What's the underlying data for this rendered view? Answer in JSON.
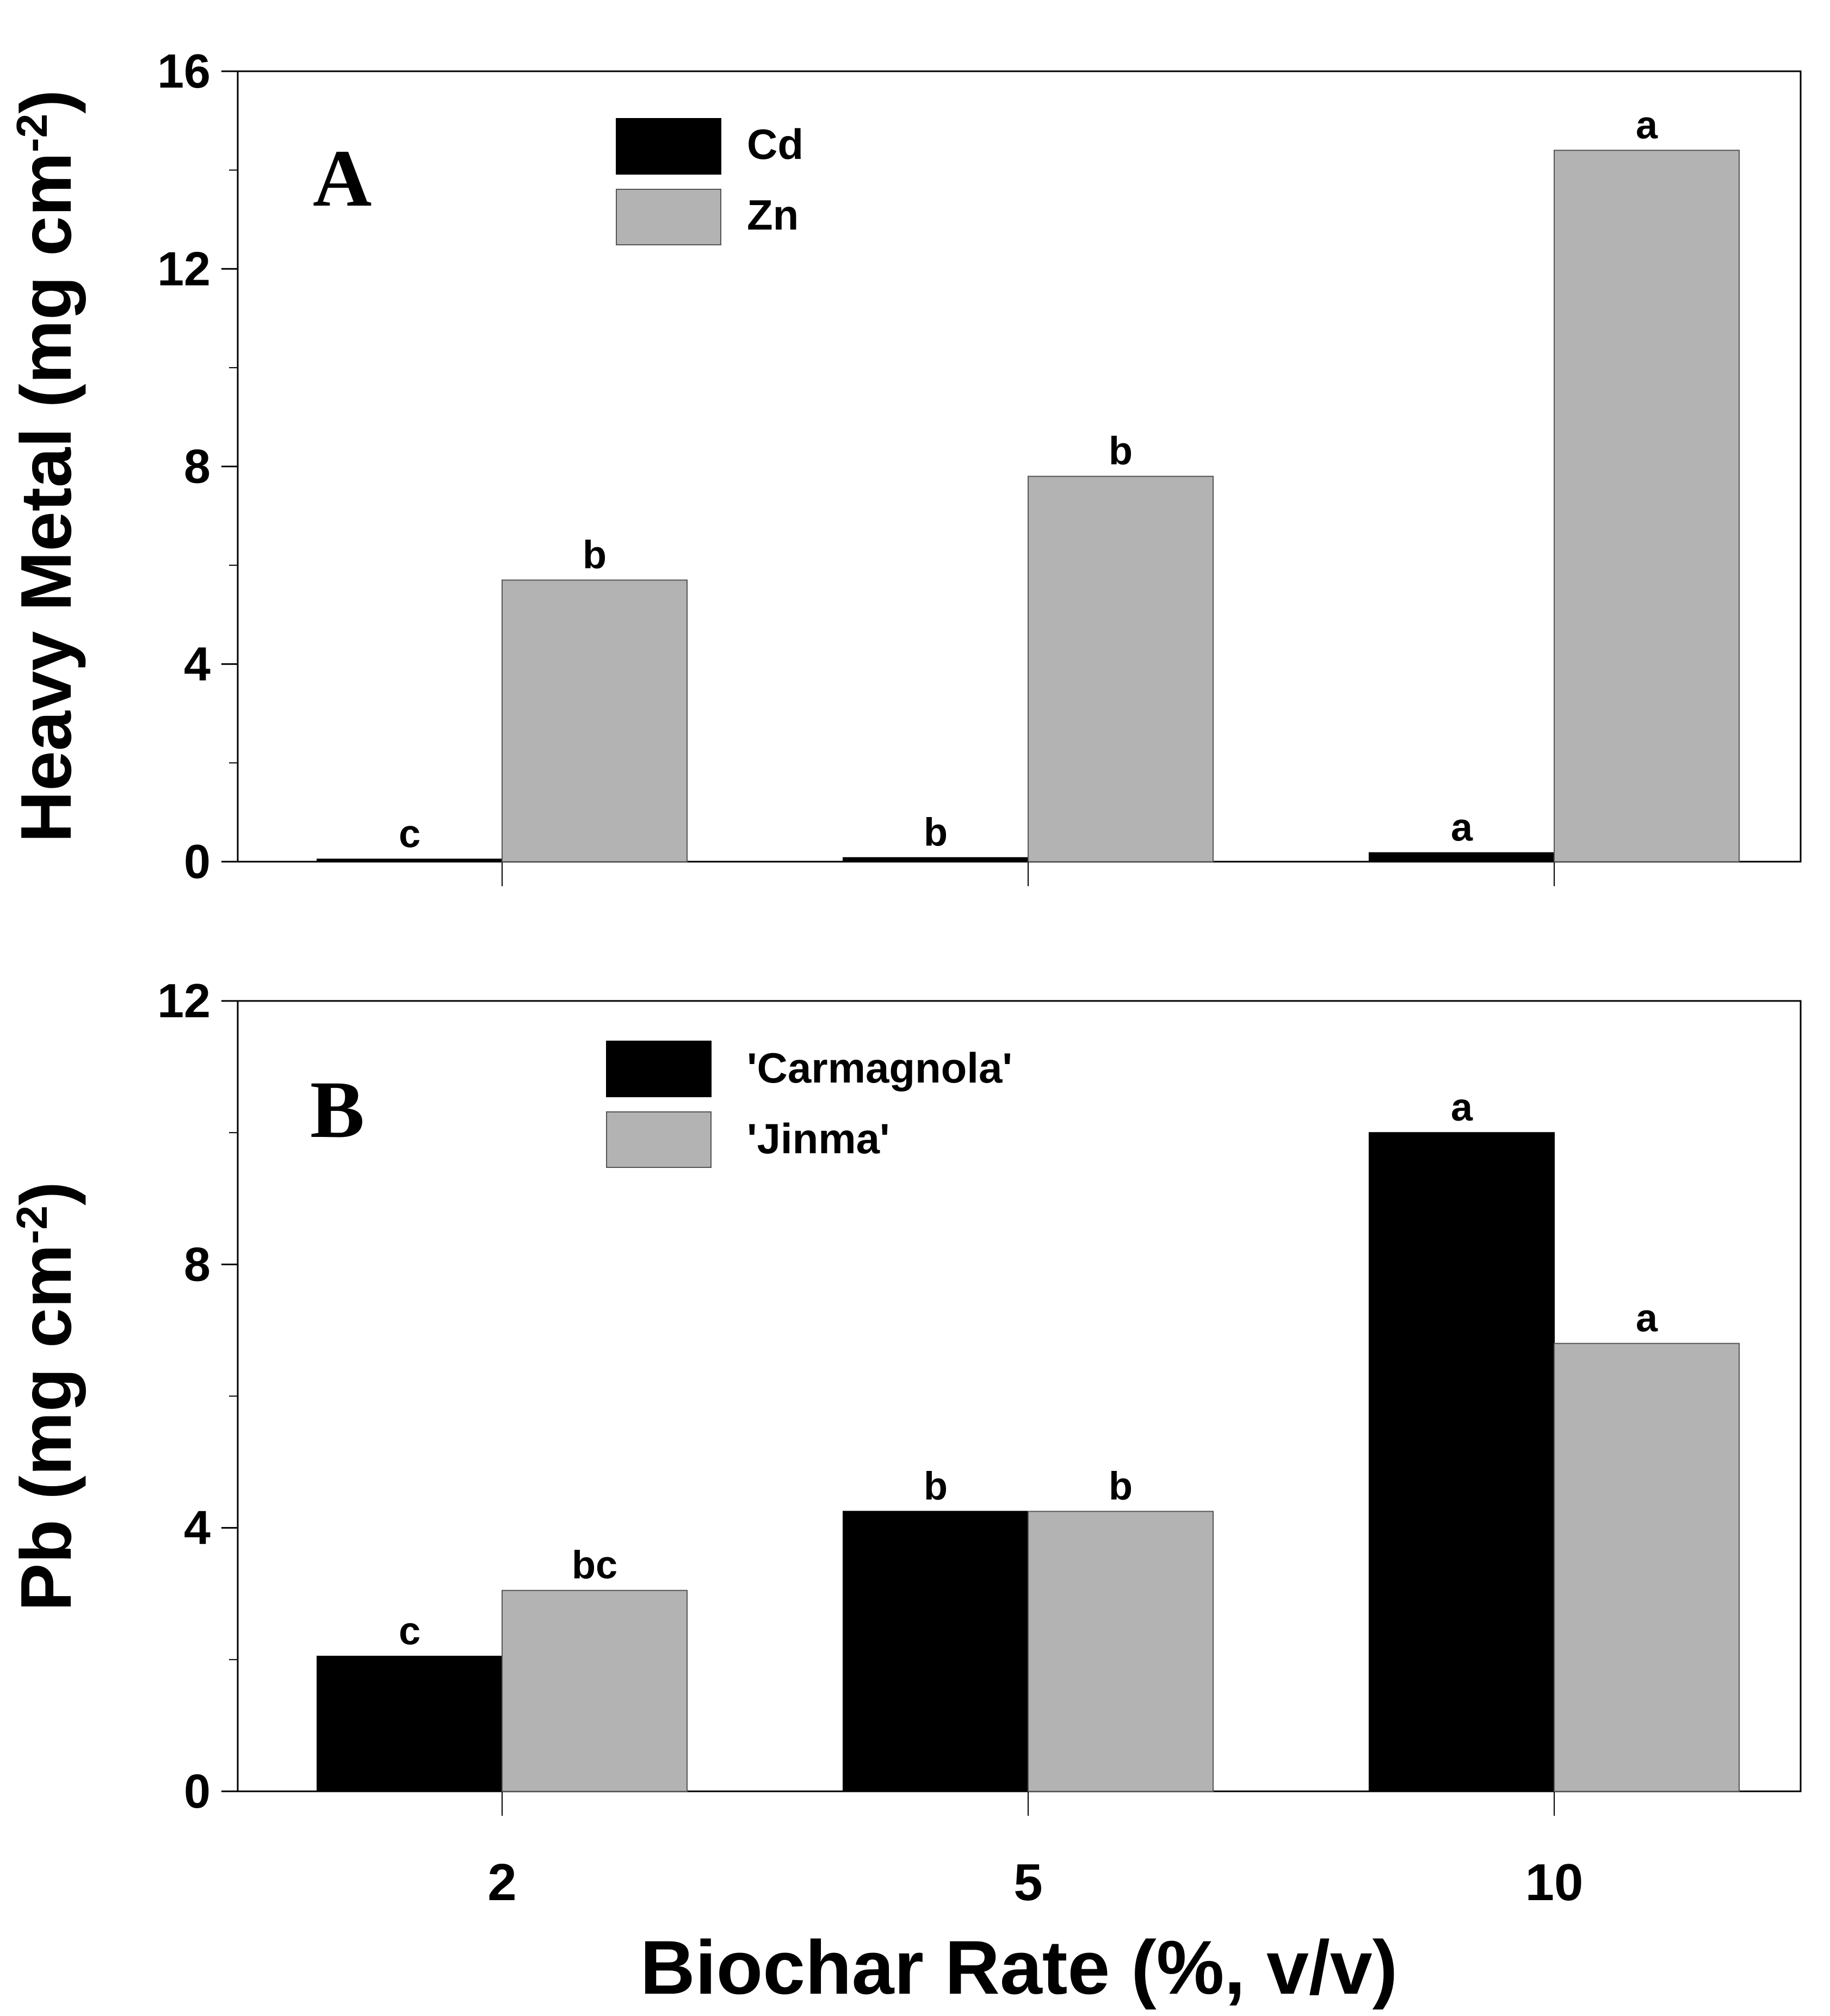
{
  "colors": {
    "series_dark": "#000000",
    "series_light": "#b3b3b3",
    "axis": "#000000",
    "background": "#ffffff"
  },
  "chart_data": [
    {
      "type": "bar",
      "panel_label": "A",
      "categories": [
        "2",
        "5",
        "10"
      ],
      "series": [
        {
          "name": "Cd",
          "values": [
            0.05,
            0.08,
            0.18
          ],
          "letters": [
            "c",
            "b",
            "a"
          ]
        },
        {
          "name": "Zn",
          "values": [
            5.7,
            7.8,
            14.4
          ],
          "letters": [
            "b",
            "b",
            "a"
          ]
        }
      ],
      "ylabel": "Heavy Metal (mg cm-2)",
      "ylabel_main": "Heavy Metal (mg cm",
      "ylabel_sup": "-2",
      "ylabel_close": ")",
      "xlabel": "",
      "ylim": [
        0,
        16
      ],
      "yticks": [
        "0",
        "4",
        "8",
        "12",
        "16"
      ],
      "legend_position": "top-left"
    },
    {
      "type": "bar",
      "panel_label": "B",
      "categories": [
        "2",
        "5",
        "10"
      ],
      "series": [
        {
          "name": "'Carmagnola'",
          "values": [
            2.05,
            4.25,
            10.0
          ],
          "letters": [
            "c",
            "b",
            "a"
          ]
        },
        {
          "name": "'Jinma'",
          "values": [
            3.05,
            4.25,
            6.8
          ],
          "letters": [
            "bc",
            "b",
            "a"
          ]
        }
      ],
      "ylabel": "Pb (mg cm-2)",
      "ylabel_main": "Pb (mg cm",
      "ylabel_sup": "-2",
      "ylabel_close": ")",
      "xlabel": "Biochar Rate (%, v/v)",
      "ylim": [
        0,
        12
      ],
      "yticks": [
        "0",
        "4",
        "8",
        "12"
      ],
      "legend_position": "top-left"
    }
  ]
}
